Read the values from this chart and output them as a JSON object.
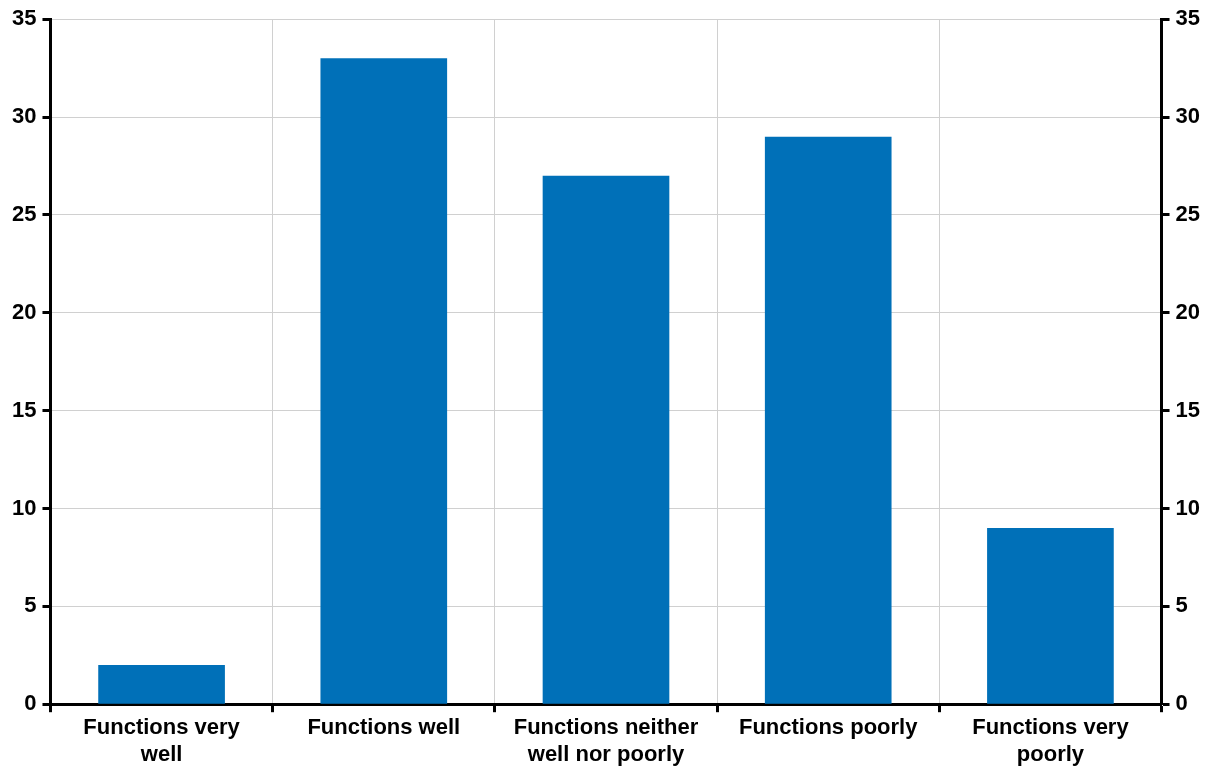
{
  "chart_data": {
    "type": "bar",
    "categories": [
      "Functions very well",
      "Functions well",
      "Functions neither well nor poorly",
      "Functions poorly",
      "Functions very poorly"
    ],
    "values": [
      2,
      33,
      27,
      29,
      9
    ],
    "color": "#0070b8",
    "ylim": [
      0,
      35
    ],
    "yticks": [
      0,
      5,
      10,
      15,
      20,
      25,
      30,
      35
    ],
    "y2lim": [
      0,
      35
    ],
    "y2ticks": [
      0,
      5,
      10,
      15,
      20,
      25,
      30,
      35
    ],
    "grid": true
  }
}
